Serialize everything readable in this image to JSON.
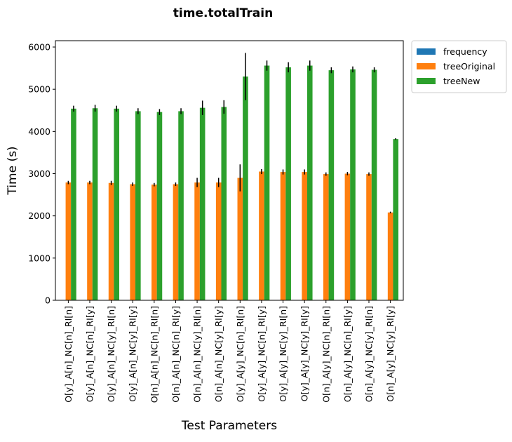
{
  "chart_data": {
    "type": "bar",
    "title": "time.totalTrain",
    "xlabel": "Test Parameters",
    "ylabel": "Time (s)",
    "ylim": [
      0,
      6150
    ],
    "yticks": [
      0,
      1000,
      2000,
      3000,
      4000,
      5000,
      6000
    ],
    "grid": false,
    "legend_position": "outside top-right",
    "categories": [
      "O[y]_A[n]_NC[n]_RI[n]",
      "O[y]_A[n]_NC[n]_RI[y]",
      "O[y]_A[n]_NC[y]_RI[n]",
      "O[y]_A[n]_NC[y]_RI[y]",
      "O[n]_A[n]_NC[n]_RI[n]",
      "O[n]_A[n]_NC[n]_RI[y]",
      "O[n]_A[n]_NC[y]_RI[n]",
      "O[n]_A[n]_NC[y]_RI[y]",
      "O[y]_A[y]_NC[n]_RI[n]",
      "O[y]_A[y]_NC[n]_RI[y]",
      "O[y]_A[y]_NC[y]_RI[n]",
      "O[y]_A[y]_NC[y]_RI[y]",
      "O[n]_A[y]_NC[n]_RI[n]",
      "O[n]_A[y]_NC[n]_RI[y]",
      "O[n]_A[y]_NC[y]_RI[n]",
      "O[n]_A[y]_NC[y]_RI[y]"
    ],
    "series": [
      {
        "name": "frequency",
        "color": "#1f77b4",
        "values": [
          8,
          8,
          8,
          8,
          8,
          8,
          8,
          8,
          8,
          8,
          8,
          8,
          8,
          8,
          8,
          8
        ],
        "errors": [
          0,
          0,
          0,
          0,
          0,
          0,
          0,
          0,
          0,
          0,
          0,
          0,
          0,
          0,
          0,
          0
        ]
      },
      {
        "name": "treeOriginal",
        "color": "#ff7f0e",
        "values": [
          2790,
          2790,
          2780,
          2750,
          2740,
          2750,
          2790,
          2790,
          2900,
          3050,
          3040,
          3040,
          2990,
          3000,
          2990,
          2080
        ],
        "errors": [
          40,
          40,
          50,
          40,
          40,
          40,
          110,
          110,
          320,
          60,
          60,
          60,
          40,
          40,
          40,
          20
        ]
      },
      {
        "name": "treeNew",
        "color": "#2ca02c",
        "values": [
          4540,
          4550,
          4540,
          4480,
          4460,
          4480,
          4560,
          4580,
          5300,
          5560,
          5520,
          5560,
          5450,
          5470,
          5460,
          3820
        ],
        "errors": [
          70,
          80,
          70,
          70,
          70,
          70,
          170,
          160,
          560,
          120,
          120,
          120,
          70,
          70,
          60,
          20
        ]
      }
    ]
  }
}
